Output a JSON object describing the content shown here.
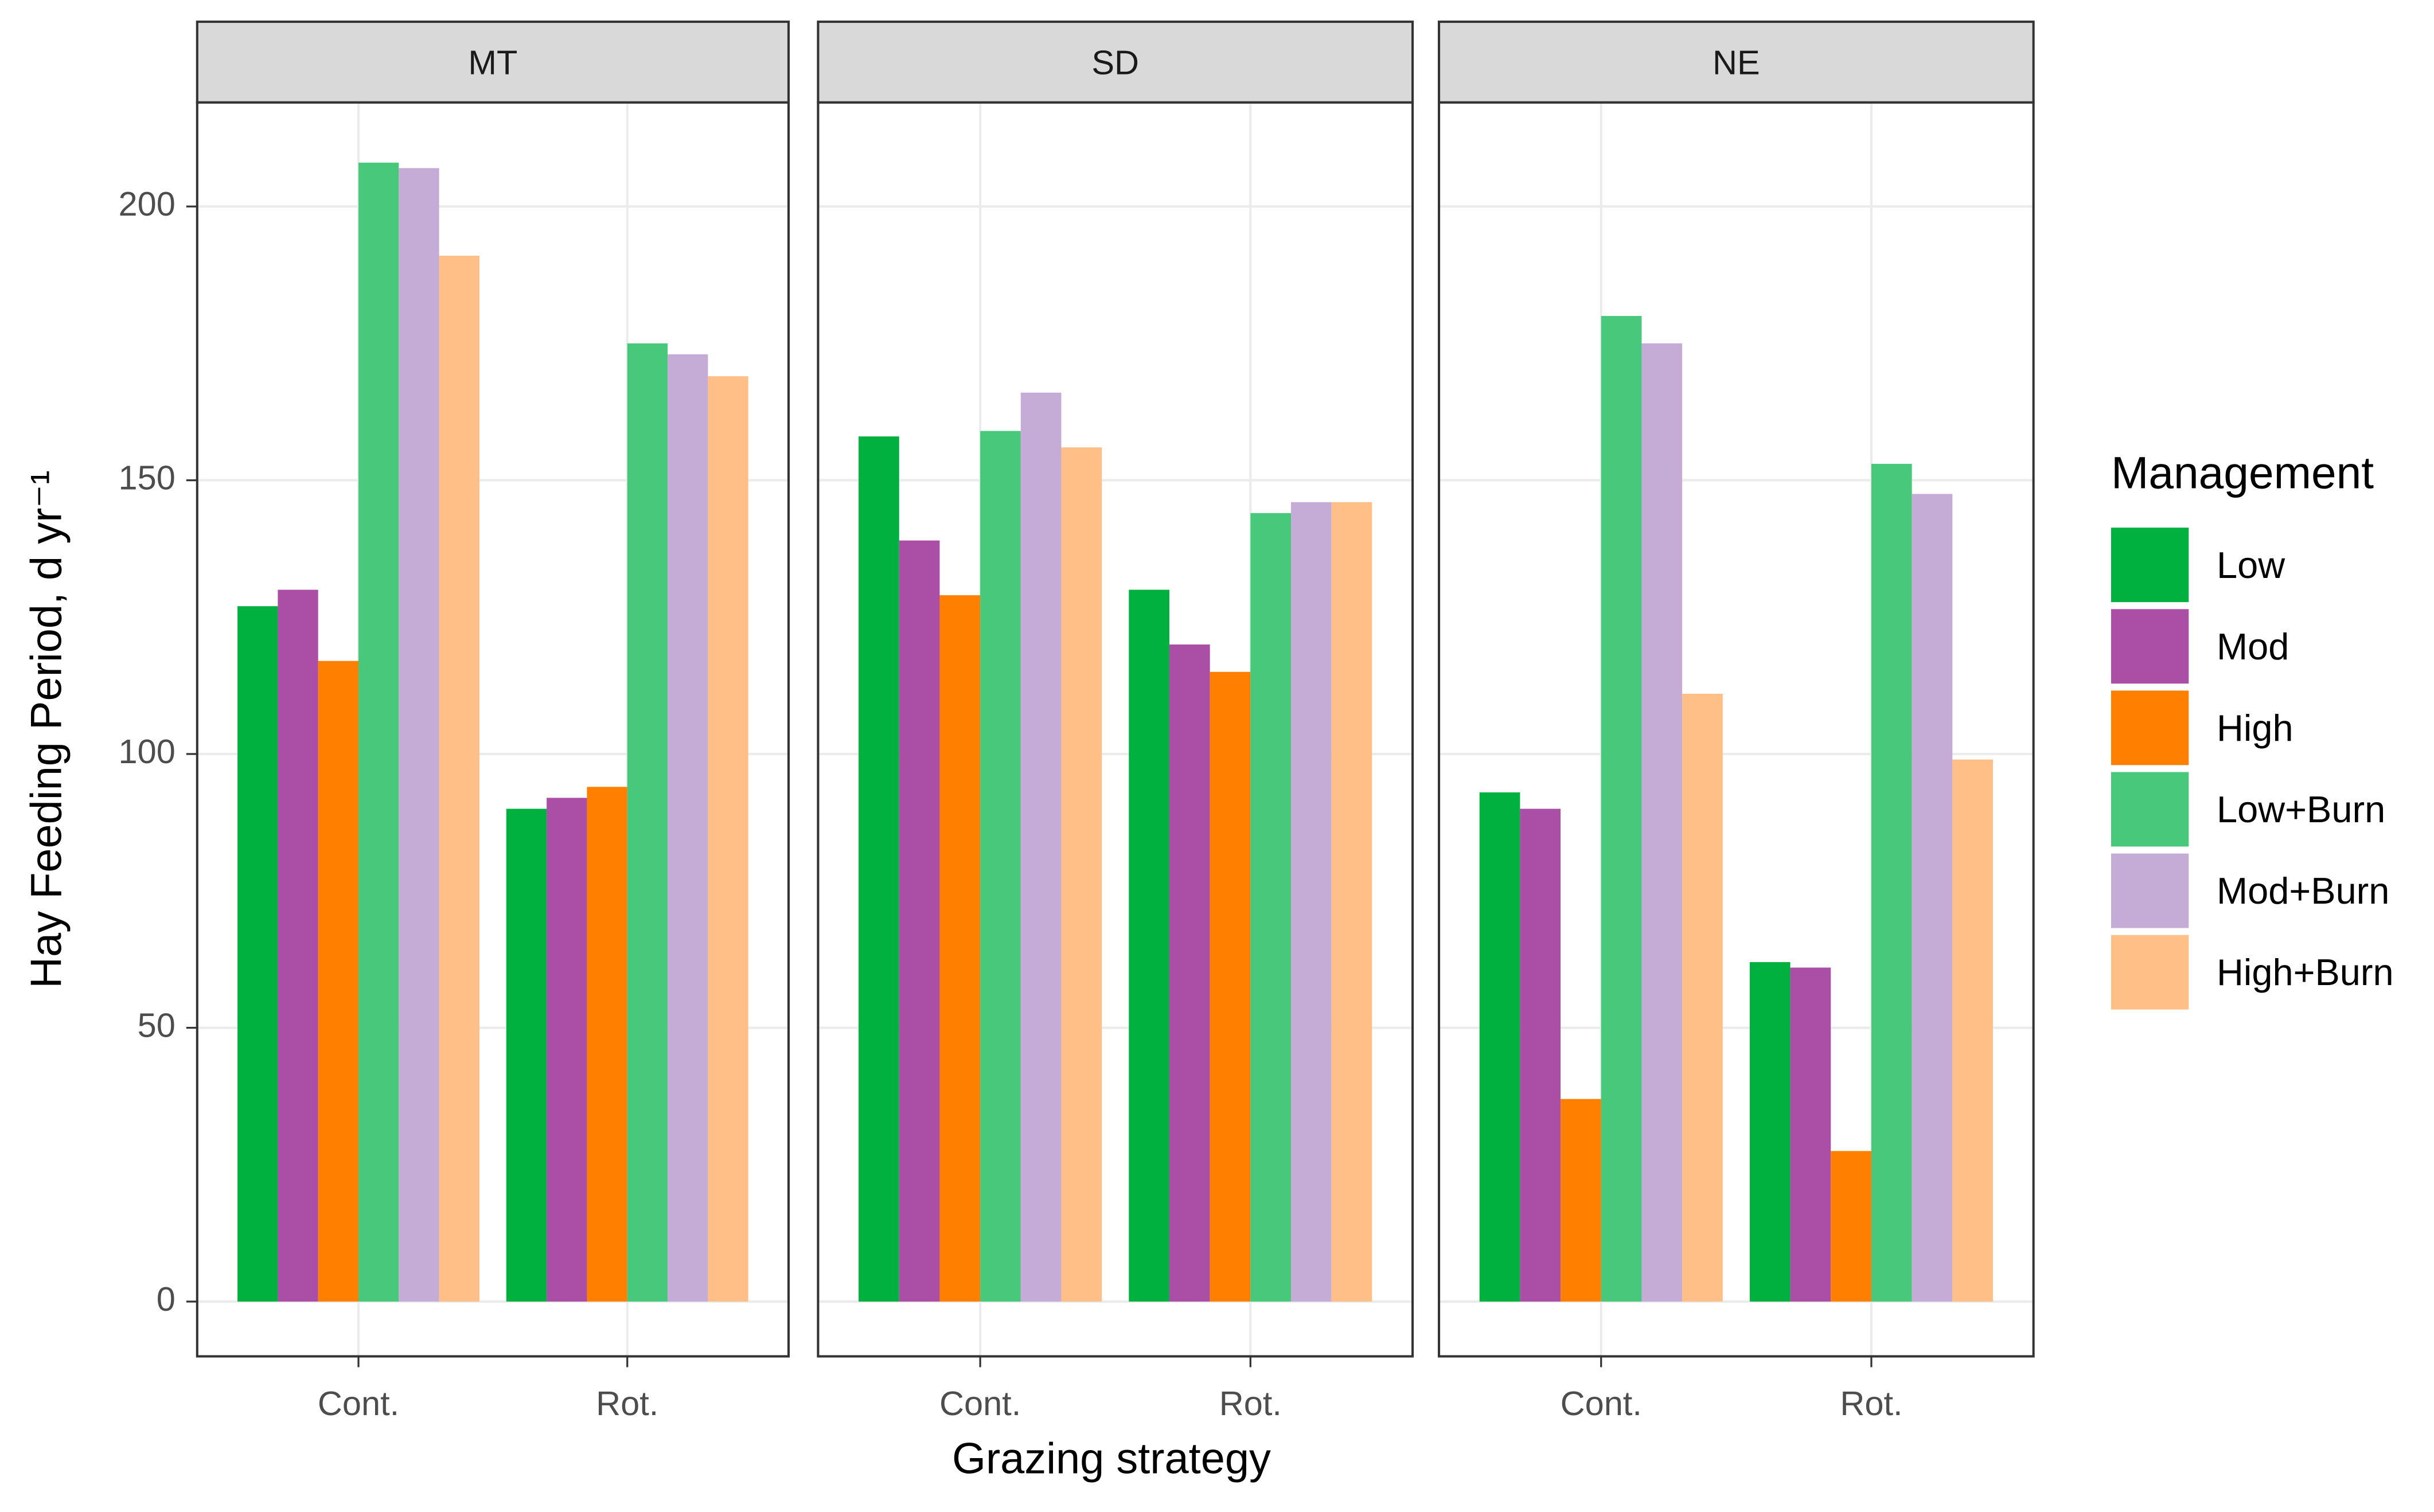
{
  "chart_data": {
    "type": "bar",
    "x_label": "Grazing strategy",
    "y_label": "Hay Feeding Period, d yr⁻¹",
    "legend_title": "Management",
    "categories": [
      "Cont.",
      "Rot."
    ],
    "ylim": [
      -10,
      219
    ],
    "yticks": [
      0,
      50,
      100,
      150,
      200
    ],
    "grid": true,
    "legend_position": "right",
    "series_styles": [
      {
        "name": "Low",
        "color": "#00b140"
      },
      {
        "name": "Mod",
        "color": "#aa4ea6"
      },
      {
        "name": "High",
        "color": "#ff7f00"
      },
      {
        "name": "Low+Burn",
        "color": "#48c87a"
      },
      {
        "name": "Mod+Burn",
        "color": "#c5acd6"
      },
      {
        "name": "High+Burn",
        "color": "#ffbf87"
      }
    ],
    "facets": [
      {
        "title": "MT",
        "series": [
          {
            "values": [
              127,
              90
            ]
          },
          {
            "values": [
              130,
              92
            ]
          },
          {
            "values": [
              117,
              94
            ]
          },
          {
            "values": [
              208,
              175
            ]
          },
          {
            "values": [
              207,
              173
            ]
          },
          {
            "values": [
              191,
              169
            ]
          }
        ]
      },
      {
        "title": "SD",
        "series": [
          {
            "values": [
              158,
              130
            ]
          },
          {
            "values": [
              139,
              120
            ]
          },
          {
            "values": [
              129,
              115
            ]
          },
          {
            "values": [
              159,
              144
            ]
          },
          {
            "values": [
              166,
              146
            ]
          },
          {
            "values": [
              156,
              146
            ]
          }
        ]
      },
      {
        "title": "NE",
        "series": [
          {
            "values": [
              93,
              62
            ]
          },
          {
            "values": [
              90,
              61
            ]
          },
          {
            "values": [
              37,
              27.5
            ]
          },
          {
            "values": [
              180,
              153
            ]
          },
          {
            "values": [
              175,
              147.5
            ]
          },
          {
            "values": [
              111,
              99
            ]
          }
        ]
      }
    ]
  }
}
